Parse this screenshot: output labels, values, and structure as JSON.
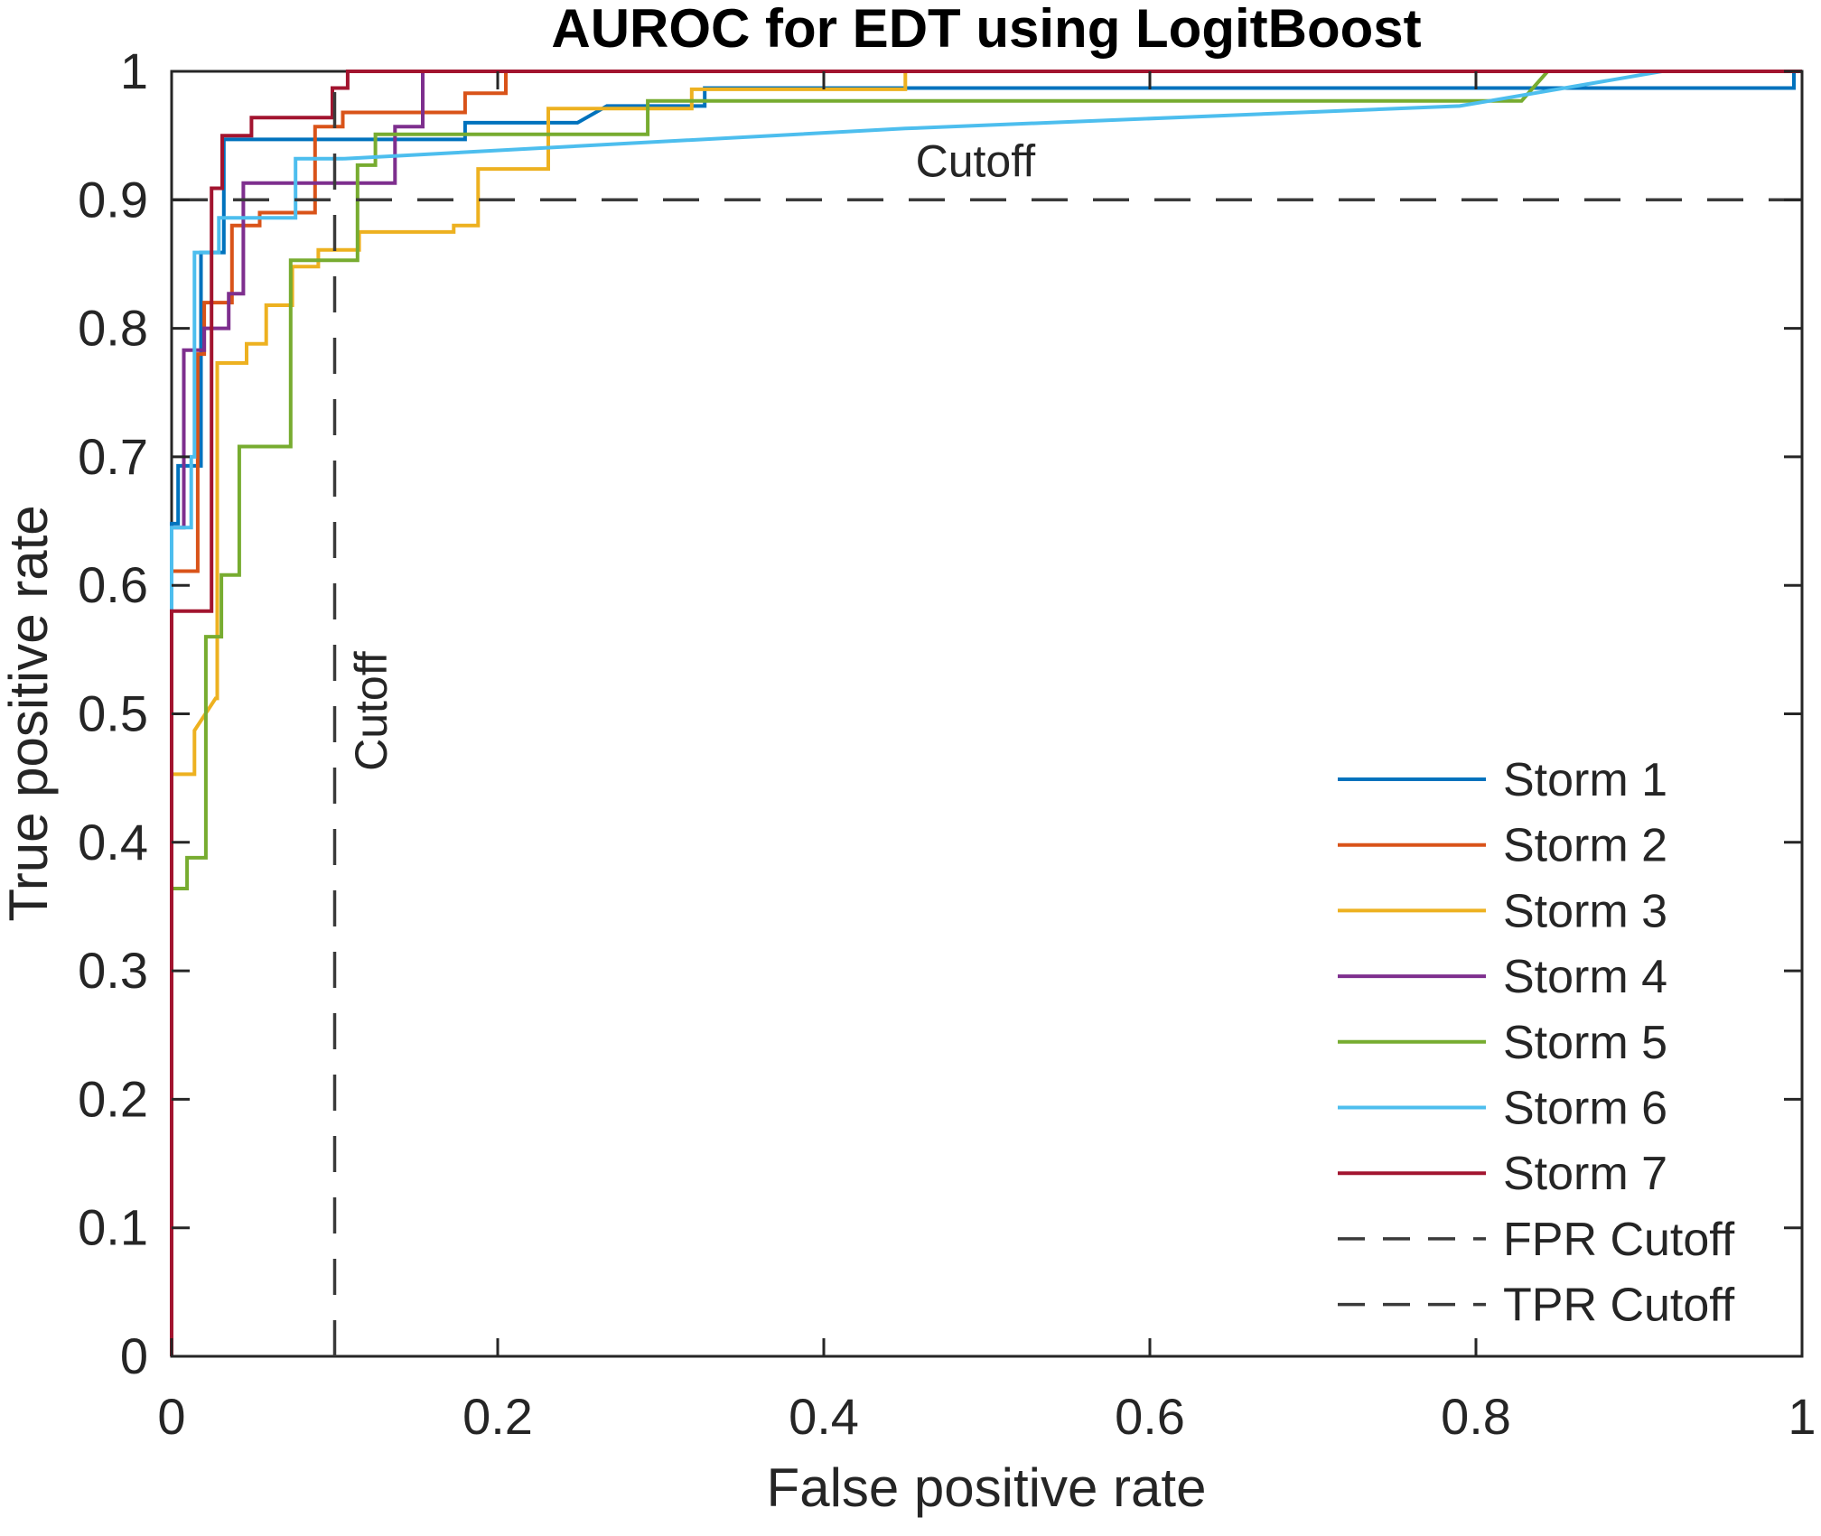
{
  "figure": {
    "background": "#ffffff",
    "axis_color": "#262626",
    "text_color": "#252525"
  },
  "chart_data": {
    "type": "line",
    "subtype": "roc-step-curves",
    "title": "AUROC for EDT using LogitBoost",
    "xlabel": "False positive rate",
    "ylabel": "True positive rate",
    "xlim": [
      0,
      1
    ],
    "ylim": [
      0,
      1
    ],
    "grid": false,
    "legend_position": "southeast",
    "x_ticks": [
      {
        "v": 0,
        "label": "0"
      },
      {
        "v": 0.2,
        "label": "0.2"
      },
      {
        "v": 0.4,
        "label": "0.4"
      },
      {
        "v": 0.6,
        "label": "0.6"
      },
      {
        "v": 0.8,
        "label": "0.8"
      },
      {
        "v": 1,
        "label": "1"
      }
    ],
    "y_ticks": [
      {
        "v": 0,
        "label": "0"
      },
      {
        "v": 0.1,
        "label": "0.1"
      },
      {
        "v": 0.2,
        "label": "0.2"
      },
      {
        "v": 0.3,
        "label": "0.3"
      },
      {
        "v": 0.4,
        "label": "0.4"
      },
      {
        "v": 0.5,
        "label": "0.5"
      },
      {
        "v": 0.6,
        "label": "0.6"
      },
      {
        "v": 0.7,
        "label": "0.7"
      },
      {
        "v": 0.8,
        "label": "0.8"
      },
      {
        "v": 0.9,
        "label": "0.9"
      },
      {
        "v": 1,
        "label": "1"
      }
    ],
    "series": [
      {
        "name": "Storm 1",
        "color": "#0072BD",
        "style": "solid",
        "points": [
          [
            0,
            0
          ],
          [
            0,
            0.648
          ],
          [
            0.004,
            0.648
          ],
          [
            0.004,
            0.693
          ],
          [
            0.018,
            0.693
          ],
          [
            0.018,
            0.859
          ],
          [
            0.032,
            0.859
          ],
          [
            0.032,
            0.947
          ],
          [
            0.18,
            0.947
          ],
          [
            0.18,
            0.96
          ],
          [
            0.249,
            0.96
          ],
          [
            0.267,
            0.973
          ],
          [
            0.327,
            0.973
          ],
          [
            0.327,
            0.987
          ],
          [
            0.995,
            0.987
          ],
          [
            0.995,
            1
          ],
          [
            1,
            1
          ]
        ]
      },
      {
        "name": "Storm 2",
        "color": "#D95319",
        "style": "solid",
        "points": [
          [
            0,
            0
          ],
          [
            0,
            0.611
          ],
          [
            0.016,
            0.611
          ],
          [
            0.016,
            0.78
          ],
          [
            0.02,
            0.78
          ],
          [
            0.02,
            0.82
          ],
          [
            0.037,
            0.82
          ],
          [
            0.037,
            0.88
          ],
          [
            0.054,
            0.88
          ],
          [
            0.054,
            0.89
          ],
          [
            0.088,
            0.89
          ],
          [
            0.088,
            0.957
          ],
          [
            0.105,
            0.957
          ],
          [
            0.105,
            0.968
          ],
          [
            0.18,
            0.968
          ],
          [
            0.18,
            0.983
          ],
          [
            0.205,
            0.983
          ],
          [
            0.205,
            1
          ],
          [
            1,
            1
          ]
        ]
      },
      {
        "name": "Storm 3",
        "color": "#EDB120",
        "style": "solid",
        "points": [
          [
            0,
            0
          ],
          [
            0,
            0.453
          ],
          [
            0.014,
            0.453
          ],
          [
            0.014,
            0.487
          ],
          [
            0.027,
            0.512
          ],
          [
            0.028,
            0.512
          ],
          [
            0.028,
            0.773
          ],
          [
            0.046,
            0.773
          ],
          [
            0.046,
            0.788
          ],
          [
            0.058,
            0.788
          ],
          [
            0.058,
            0.818
          ],
          [
            0.074,
            0.818
          ],
          [
            0.074,
            0.848
          ],
          [
            0.09,
            0.848
          ],
          [
            0.09,
            0.861
          ],
          [
            0.115,
            0.861
          ],
          [
            0.115,
            0.875
          ],
          [
            0.173,
            0.875
          ],
          [
            0.173,
            0.88
          ],
          [
            0.188,
            0.88
          ],
          [
            0.188,
            0.924
          ],
          [
            0.231,
            0.924
          ],
          [
            0.231,
            0.971
          ],
          [
            0.319,
            0.971
          ],
          [
            0.319,
            0.986
          ],
          [
            0.45,
            0.986
          ],
          [
            0.45,
            1
          ],
          [
            1,
            1
          ]
        ]
      },
      {
        "name": "Storm 4",
        "color": "#7E2F8E",
        "style": "solid",
        "points": [
          [
            0,
            0
          ],
          [
            0,
            0.645
          ],
          [
            0.0075,
            0.645
          ],
          [
            0.0075,
            0.783
          ],
          [
            0.02,
            0.783
          ],
          [
            0.02,
            0.8
          ],
          [
            0.035,
            0.8
          ],
          [
            0.035,
            0.827
          ],
          [
            0.044,
            0.827
          ],
          [
            0.044,
            0.913
          ],
          [
            0.137,
            0.913
          ],
          [
            0.137,
            0.957
          ],
          [
            0.154,
            0.957
          ],
          [
            0.154,
            1
          ],
          [
            1,
            1
          ]
        ]
      },
      {
        "name": "Storm 5",
        "color": "#77AC30",
        "style": "solid",
        "points": [
          [
            0,
            0
          ],
          [
            0,
            0.364
          ],
          [
            0.0095,
            0.364
          ],
          [
            0.0095,
            0.388
          ],
          [
            0.021,
            0.388
          ],
          [
            0.021,
            0.56
          ],
          [
            0.0305,
            0.56
          ],
          [
            0.0305,
            0.608
          ],
          [
            0.0415,
            0.608
          ],
          [
            0.0415,
            0.708
          ],
          [
            0.073,
            0.708
          ],
          [
            0.073,
            0.853
          ],
          [
            0.114,
            0.853
          ],
          [
            0.114,
            0.927
          ],
          [
            0.125,
            0.927
          ],
          [
            0.125,
            0.951
          ],
          [
            0.292,
            0.951
          ],
          [
            0.292,
            0.977
          ],
          [
            0.828,
            0.977
          ],
          [
            0.844,
            1
          ],
          [
            1,
            1
          ]
        ]
      },
      {
        "name": "Storm 6",
        "color": "#4DBEEE",
        "style": "solid",
        "points": [
          [
            0,
            0
          ],
          [
            0,
            0.645
          ],
          [
            0.012,
            0.645
          ],
          [
            0.012,
            0.7
          ],
          [
            0.014,
            0.7
          ],
          [
            0.014,
            0.859
          ],
          [
            0.029,
            0.859
          ],
          [
            0.029,
            0.886
          ],
          [
            0.076,
            0.886
          ],
          [
            0.076,
            0.932
          ],
          [
            0.105,
            0.932
          ],
          [
            0.45,
            0.9555
          ],
          [
            0.79,
            0.973
          ],
          [
            0.914,
            1
          ],
          [
            1,
            1
          ]
        ]
      },
      {
        "name": "Storm 7",
        "color": "#A2142F",
        "style": "solid",
        "points": [
          [
            0,
            0
          ],
          [
            0,
            0.58
          ],
          [
            0.0245,
            0.58
          ],
          [
            0.0245,
            0.909
          ],
          [
            0.031,
            0.909
          ],
          [
            0.031,
            0.95
          ],
          [
            0.049,
            0.95
          ],
          [
            0.049,
            0.964
          ],
          [
            0.0986,
            0.964
          ],
          [
            0.0986,
            0.987
          ],
          [
            0.108,
            0.987
          ],
          [
            0.108,
            1
          ],
          [
            1,
            1
          ]
        ]
      },
      {
        "name": "FPR Cutoff",
        "color": "#3a3a3a",
        "style": "dashed",
        "orientation": "vertical",
        "value": 0.1,
        "points": [
          [
            0.1,
            0
          ],
          [
            0.1,
            1
          ]
        ]
      },
      {
        "name": "TPR Cutoff",
        "color": "#3a3a3a",
        "style": "dashed",
        "orientation": "horizontal",
        "value": 0.9,
        "points": [
          [
            0,
            0.9
          ],
          [
            1,
            0.9
          ]
        ]
      }
    ],
    "annotations": [
      {
        "text": "Cutoff",
        "x": 0.493,
        "y": 0.918,
        "rotation": 0,
        "note": "label above TPR cutoff dashed line"
      },
      {
        "text": "Cutoff",
        "x": 0.132,
        "y": 0.502,
        "rotation": -90,
        "note": "label right of FPR cutoff dashed line"
      }
    ]
  }
}
